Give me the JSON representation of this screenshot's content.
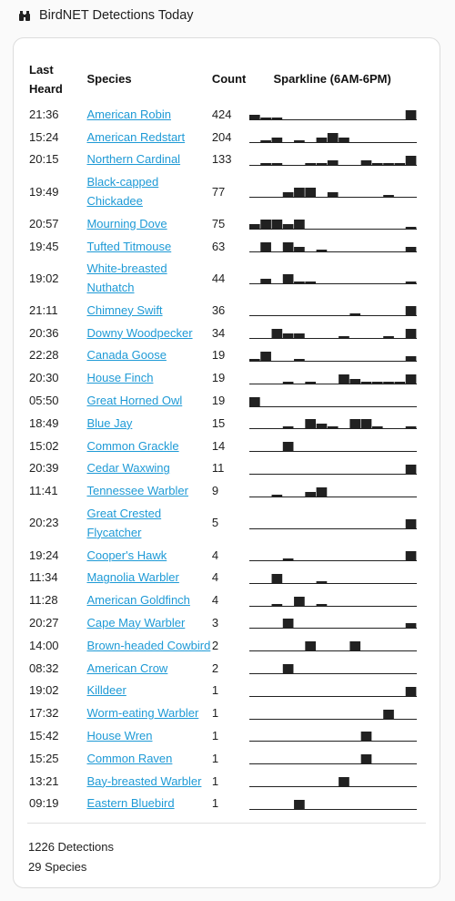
{
  "header": {
    "title": "BirdNET Detections Today",
    "icon": "binoculars-icon"
  },
  "table": {
    "columns": {
      "time": "Last Heard",
      "species": "Species",
      "count": "Count",
      "sparkline": "Sparkline (6AM-6PM)"
    },
    "rows": [
      {
        "time": "21:36",
        "species": "American Robin",
        "count": "424",
        "spark": [
          2,
          1,
          1,
          0,
          0,
          0,
          0,
          0,
          0,
          0,
          0,
          0,
          0,
          0,
          3
        ]
      },
      {
        "time": "15:24",
        "species": "American Redstart",
        "count": "204",
        "spark": [
          0,
          1,
          2,
          0,
          1,
          0,
          2,
          3,
          2,
          0,
          0,
          0,
          0,
          0,
          0
        ]
      },
      {
        "time": "20:15",
        "species": "Northern Cardinal",
        "count": "133",
        "spark": [
          0,
          1,
          1,
          0,
          0,
          1,
          1,
          2,
          0,
          0,
          2,
          1,
          1,
          1,
          3
        ]
      },
      {
        "time": "19:49",
        "species": "Black-capped Chickadee",
        "count": "77",
        "spark": [
          0,
          0,
          0,
          2,
          3,
          3,
          0,
          2,
          0,
          0,
          0,
          0,
          1,
          0,
          0
        ]
      },
      {
        "time": "20:57",
        "species": "Mourning Dove",
        "count": "75",
        "spark": [
          2,
          3,
          3,
          2,
          3,
          0,
          0,
          0,
          0,
          0,
          0,
          0,
          0,
          0,
          1
        ]
      },
      {
        "time": "19:45",
        "species": "Tufted Titmouse",
        "count": "63",
        "spark": [
          0,
          3,
          0,
          3,
          2,
          0,
          1,
          0,
          0,
          0,
          0,
          0,
          0,
          0,
          2
        ]
      },
      {
        "time": "19:02",
        "species": "White-breasted Nuthatch",
        "count": "44",
        "spark": [
          0,
          2,
          0,
          3,
          1,
          1,
          0,
          0,
          0,
          0,
          0,
          0,
          0,
          0,
          1
        ]
      },
      {
        "time": "21:11",
        "species": "Chimney Swift",
        "count": "36",
        "spark": [
          0,
          0,
          0,
          0,
          0,
          0,
          0,
          0,
          0,
          1,
          0,
          0,
          0,
          0,
          3
        ]
      },
      {
        "time": "20:36",
        "species": "Downy Woodpecker",
        "count": "34",
        "spark": [
          0,
          0,
          3,
          2,
          2,
          0,
          0,
          0,
          1,
          0,
          0,
          0,
          1,
          0,
          3
        ]
      },
      {
        "time": "22:28",
        "species": "Canada Goose",
        "count": "19",
        "spark": [
          1,
          3,
          0,
          0,
          1,
          0,
          0,
          0,
          0,
          0,
          0,
          0,
          0,
          0,
          2
        ]
      },
      {
        "time": "20:30",
        "species": "House Finch",
        "count": "19",
        "spark": [
          0,
          0,
          0,
          1,
          0,
          1,
          0,
          0,
          3,
          2,
          1,
          1,
          1,
          1,
          3
        ]
      },
      {
        "time": "05:50",
        "species": "Great Horned Owl",
        "count": "19",
        "spark": [
          3,
          0,
          0,
          0,
          0,
          0,
          0,
          0,
          0,
          0,
          0,
          0,
          0,
          0,
          0
        ]
      },
      {
        "time": "18:49",
        "species": "Blue Jay",
        "count": "15",
        "spark": [
          0,
          0,
          0,
          1,
          0,
          3,
          2,
          1,
          0,
          3,
          3,
          1,
          0,
          0,
          1
        ]
      },
      {
        "time": "15:02",
        "species": "Common Grackle",
        "count": "14",
        "spark": [
          0,
          0,
          0,
          3,
          0,
          0,
          0,
          0,
          0,
          0,
          0,
          0,
          0,
          0,
          0
        ]
      },
      {
        "time": "20:39",
        "species": "Cedar Waxwing",
        "count": "11",
        "spark": [
          0,
          0,
          0,
          0,
          0,
          0,
          0,
          0,
          0,
          0,
          0,
          0,
          0,
          0,
          3
        ]
      },
      {
        "time": "11:41",
        "species": "Tennessee Warbler",
        "count": "9",
        "spark": [
          0,
          0,
          1,
          0,
          0,
          2,
          3,
          0,
          0,
          0,
          0,
          0,
          0,
          0,
          0
        ]
      },
      {
        "time": "20:23",
        "species": "Great Crested Flycatcher",
        "count": "5",
        "spark": [
          0,
          0,
          0,
          0,
          0,
          0,
          0,
          0,
          0,
          0,
          0,
          0,
          0,
          0,
          3
        ]
      },
      {
        "time": "19:24",
        "species": "Cooper's Hawk",
        "count": "4",
        "spark": [
          0,
          0,
          0,
          1,
          0,
          0,
          0,
          0,
          0,
          0,
          0,
          0,
          0,
          0,
          3
        ]
      },
      {
        "time": "11:34",
        "species": "Magnolia Warbler",
        "count": "4",
        "spark": [
          0,
          0,
          3,
          0,
          0,
          0,
          1,
          0,
          0,
          0,
          0,
          0,
          0,
          0,
          0
        ]
      },
      {
        "time": "11:28",
        "species": "American Goldfinch",
        "count": "4",
        "spark": [
          0,
          0,
          1,
          0,
          3,
          0,
          1,
          0,
          0,
          0,
          0,
          0,
          0,
          0,
          0
        ]
      },
      {
        "time": "20:27",
        "species": "Cape May Warbler",
        "count": "3",
        "spark": [
          0,
          0,
          0,
          3,
          0,
          0,
          0,
          0,
          0,
          0,
          0,
          0,
          0,
          0,
          2
        ]
      },
      {
        "time": "14:00",
        "species": "Brown-headed Cowbird",
        "count": "2",
        "spark": [
          0,
          0,
          0,
          0,
          0,
          3,
          0,
          0,
          0,
          3,
          0,
          0,
          0,
          0,
          0
        ]
      },
      {
        "time": "08:32",
        "species": "American Crow",
        "count": "2",
        "spark": [
          0,
          0,
          0,
          3,
          0,
          0,
          0,
          0,
          0,
          0,
          0,
          0,
          0,
          0,
          0
        ]
      },
      {
        "time": "19:02",
        "species": "Killdeer",
        "count": "1",
        "spark": [
          0,
          0,
          0,
          0,
          0,
          0,
          0,
          0,
          0,
          0,
          0,
          0,
          0,
          0,
          3
        ]
      },
      {
        "time": "17:32",
        "species": "Worm-eating Warbler",
        "count": "1",
        "spark": [
          0,
          0,
          0,
          0,
          0,
          0,
          0,
          0,
          0,
          0,
          0,
          0,
          3,
          0,
          0
        ]
      },
      {
        "time": "15:42",
        "species": "House Wren",
        "count": "1",
        "spark": [
          0,
          0,
          0,
          0,
          0,
          0,
          0,
          0,
          0,
          0,
          3,
          0,
          0,
          0,
          0
        ]
      },
      {
        "time": "15:25",
        "species": "Common Raven",
        "count": "1",
        "spark": [
          0,
          0,
          0,
          0,
          0,
          0,
          0,
          0,
          0,
          0,
          3,
          0,
          0,
          0,
          0
        ]
      },
      {
        "time": "13:21",
        "species": "Bay-breasted Warbler",
        "count": "1",
        "spark": [
          0,
          0,
          0,
          0,
          0,
          0,
          0,
          0,
          3,
          0,
          0,
          0,
          0,
          0,
          0
        ]
      },
      {
        "time": "09:19",
        "species": "Eastern Bluebird",
        "count": "1",
        "spark": [
          0,
          0,
          0,
          0,
          3,
          0,
          0,
          0,
          0,
          0,
          0,
          0,
          0,
          0,
          0
        ]
      }
    ]
  },
  "footer": {
    "detections": "1226 Detections",
    "species": "29 Species"
  },
  "colors": {
    "link": "#1e9ad6",
    "bar": "#212121"
  }
}
